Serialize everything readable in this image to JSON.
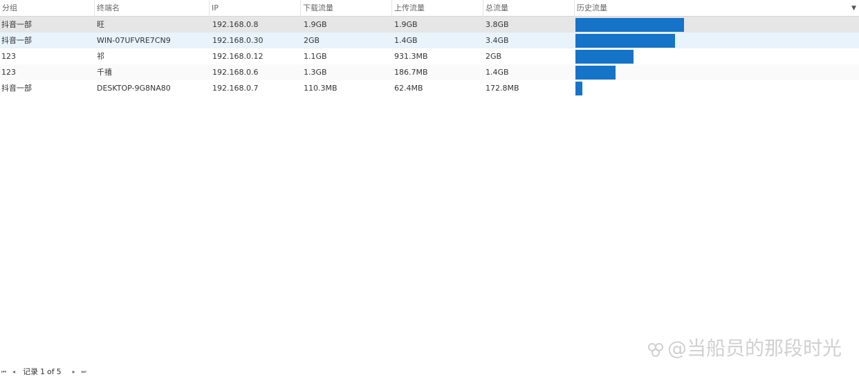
{
  "columns": [
    {
      "key": "group",
      "label": "分组"
    },
    {
      "key": "terminal",
      "label": "终端名"
    },
    {
      "key": "ip",
      "label": "IP"
    },
    {
      "key": "download",
      "label": "下载流量"
    },
    {
      "key": "upload",
      "label": "上传流量"
    },
    {
      "key": "total",
      "label": "总流量"
    },
    {
      "key": "history",
      "label": "历史流量"
    }
  ],
  "rows": [
    {
      "group": "抖音一部",
      "terminal": "旺",
      "ip": "192.168.0.8",
      "download": "1.9GB",
      "upload": "1.9GB",
      "total": "3.8GB",
      "history_fraction": 0.382
    },
    {
      "group": "抖音一部",
      "terminal": "WIN-07UFVRE7CN9",
      "ip": "192.168.0.30",
      "download": "2GB",
      "upload": "1.4GB",
      "total": "3.4GB",
      "history_fraction": 0.35
    },
    {
      "group": "123",
      "terminal": "祁",
      "ip": "192.168.0.12",
      "download": "1.1GB",
      "upload": "931.3MB",
      "total": "2GB",
      "history_fraction": 0.206
    },
    {
      "group": "123",
      "terminal": "千禧",
      "ip": "192.168.0.6",
      "download": "1.3GB",
      "upload": "186.7MB",
      "total": "1.4GB",
      "history_fraction": 0.142
    },
    {
      "group": "抖音一部",
      "terminal": "DESKTOP-9G8NA80",
      "ip": "192.168.0.7",
      "download": "110.3MB",
      "upload": "62.4MB",
      "total": "172.8MB",
      "history_fraction": 0.024
    }
  ],
  "pager": {
    "first_icon": "first-page-icon",
    "prev_icon": "prev-page-icon",
    "record_label": "记录",
    "current": "1",
    "of_label": "of",
    "total": "5",
    "next_icon": "next-page-icon",
    "last_icon": "last-page-icon"
  },
  "watermark": {
    "text": "@当船员的那段时光"
  },
  "colors": {
    "bar": "#1573c8",
    "selected_row": "#e6e6e6",
    "hover_row": "#e8f3fb"
  }
}
